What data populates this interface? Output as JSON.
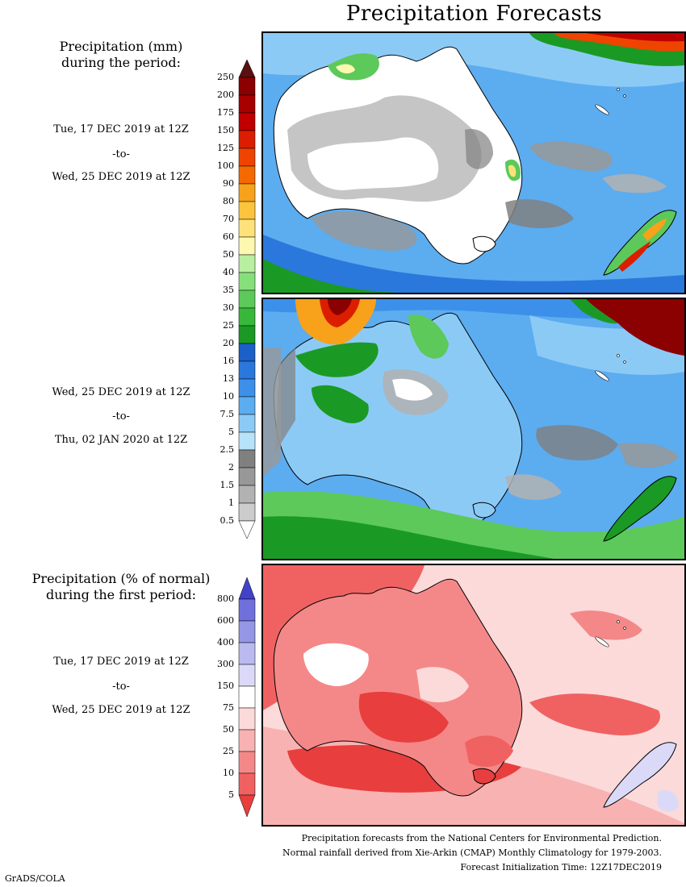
{
  "title": "Precipitation Forecasts",
  "section_mm": {
    "heading_line1": "Precipitation (mm)",
    "heading_line2": "during the period:"
  },
  "section_pct": {
    "heading_line1": "Precipitation (% of normal)",
    "heading_line2": "during the first period:"
  },
  "periods": [
    {
      "start": "Tue, 17 DEC 2019 at 12Z",
      "sep": "-to-",
      "end": "Wed, 25 DEC 2019 at 12Z"
    },
    {
      "start": "Wed, 25 DEC 2019 at 12Z",
      "sep": "-to-",
      "end": "Thu, 02 JAN 2020 at 12Z"
    },
    {
      "start": "Tue, 17 DEC 2019 at 12Z",
      "sep": "-to-",
      "end": "Wed, 25 DEC 2019 at 12Z"
    }
  ],
  "colorbar_mm": {
    "labels": [
      "250",
      "200",
      "175",
      "150",
      "125",
      "100",
      "90",
      "80",
      "70",
      "60",
      "50",
      "40",
      "35",
      "30",
      "25",
      "20",
      "16",
      "13",
      "10",
      "7.5",
      "5",
      "2.5",
      "2",
      "1.5",
      "1",
      "0.5"
    ],
    "colors": [
      "#5a1010",
      "#8b0000",
      "#a80000",
      "#c00000",
      "#dc1e00",
      "#ee4400",
      "#f46a00",
      "#f7a21a",
      "#fbc43c",
      "#fde27a",
      "#fdf7b0",
      "#b8efa0",
      "#86e07a",
      "#5cc95a",
      "#38b83a",
      "#1a9a24",
      "#1a60c8",
      "#2a78dc",
      "#3c90ea",
      "#5cacf0",
      "#8ccaf6",
      "#b6e2fa",
      "#808080",
      "#989898",
      "#b2b2b2",
      "#cccccc",
      "#ffffff"
    ]
  },
  "colorbar_pct": {
    "labels": [
      "800",
      "600",
      "400",
      "300",
      "150",
      "75",
      "50",
      "25",
      "10",
      "5"
    ],
    "colors": [
      "#4242c8",
      "#7070dc",
      "#9696e6",
      "#babaf0",
      "#dadaf8",
      "#ffffff",
      "#fcdada",
      "#f8b2b2",
      "#f48888",
      "#f06262",
      "#e83e3e"
    ]
  },
  "footer": {
    "line1": "Precipitation forecasts from the National Centers for Environmental Prediction.",
    "line2": "Normal rainfall derived from Xie-Arkin (CMAP) Monthly Climatology for 1979-2003.",
    "line3": "Forecast Initialization Time: 12Z17DEC2019"
  },
  "credit": "GrADS/COLA"
}
